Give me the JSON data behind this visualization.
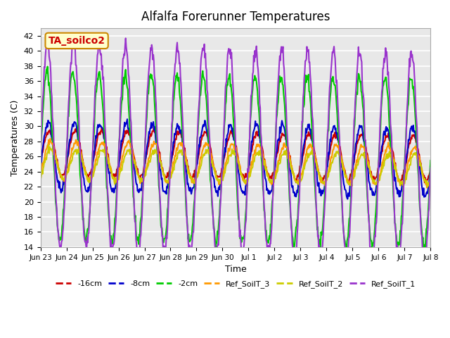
{
  "title": "Alfalfa Forerunner Temperatures",
  "xlabel": "Time",
  "ylabel": "Temperatures (C)",
  "ylim": [
    14,
    43
  ],
  "yticks": [
    14,
    16,
    18,
    20,
    22,
    24,
    26,
    28,
    30,
    32,
    34,
    36,
    38,
    40,
    42
  ],
  "annotation_text": "TA_soilco2",
  "annotation_color": "#cc0000",
  "annotation_bg": "#ffffcc",
  "annotation_border": "#cc8800",
  "colors": {
    "-16cm": "#cc0000",
    "-8cm": "#0000cc",
    "-2cm": "#00cc00",
    "Ref_SoilT_3": "#ff9900",
    "Ref_SoilT_2": "#cccc00",
    "Ref_SoilT_1": "#9933cc"
  },
  "line_widths": {
    "-16cm": 1.5,
    "-8cm": 1.5,
    "-2cm": 1.5,
    "Ref_SoilT_3": 1.5,
    "Ref_SoilT_2": 1.5,
    "Ref_SoilT_1": 1.5
  },
  "tick_labels": [
    "Jun 23",
    "Jun 24",
    "Jun 25",
    "Jun 26",
    "Jun 27",
    "Jun 28",
    "Jun 29",
    "Jun 30",
    "Jul 1",
    "Jul 2",
    "Jul 3",
    "Jul 4",
    "Jul 5",
    "Jul 6",
    "Jul 7",
    "Jul 8"
  ],
  "n_days": 15,
  "bg_color": "#e8e8e8",
  "grid_color": "#ffffff"
}
